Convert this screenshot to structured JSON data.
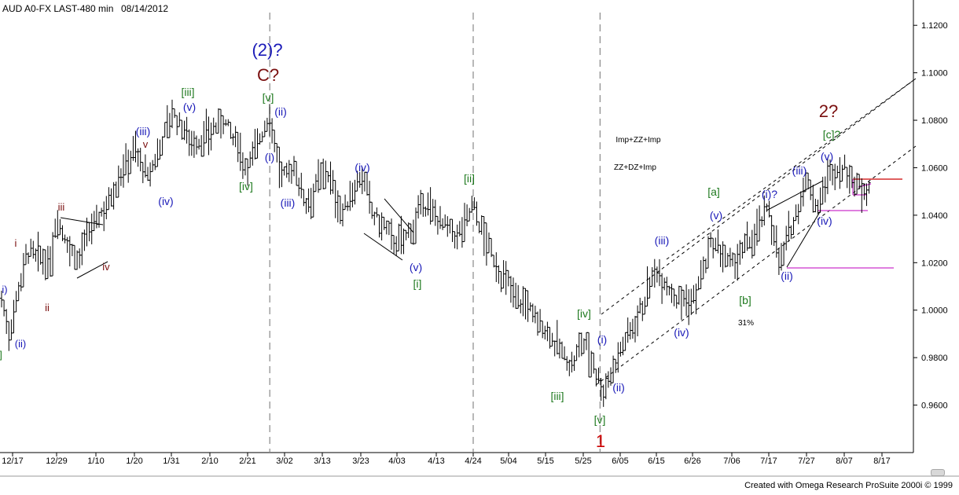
{
  "header": {
    "title": "AUD A0-FX LAST-480 min",
    "date": "08/14/2012"
  },
  "footer": {
    "credit": "Created with Omega Research ProSuite 2000i © 1999"
  },
  "colors": {
    "blue": "#1a1ab8",
    "darkred": "#7a0f0f",
    "green": "#1f7a1f",
    "magenta": "#cc33cc",
    "red": "#cc0000",
    "bars": "#000000"
  },
  "chart_data": {
    "type": "ohlc_bar",
    "symbol": "AUD A0-FX",
    "interval": "LAST-480 min",
    "date": "08/14/2012",
    "y_axis": {
      "side": "right",
      "range": [
        0.94,
        1.13
      ],
      "ticks": [
        "1.1200",
        "1.1000",
        "1.0800",
        "1.0600",
        "1.0400",
        "1.0200",
        "1.0000",
        "0.9800",
        "0.9600"
      ]
    },
    "x_axis": {
      "ticks": [
        "12/17",
        "12/29",
        "1/10",
        "1/20",
        "1/31",
        "2/10",
        "2/21",
        "3/02",
        "3/13",
        "3/23",
        "4/03",
        "4/13",
        "4/24",
        "5/04",
        "5/15",
        "5/25",
        "6/05",
        "6/15",
        "6/26",
        "7/06",
        "7/17",
        "7/27",
        "8/07",
        "8/17"
      ]
    },
    "price_path": [
      [
        "12/14",
        1.005
      ],
      [
        "12/16",
        0.99
      ],
      [
        "12/19",
        1.012
      ],
      [
        "12/21",
        1.025
      ],
      [
        "12/27",
        1.018
      ],
      [
        "12/29",
        1.04
      ],
      [
        "1/04",
        1.02
      ],
      [
        "1/09",
        1.035
      ],
      [
        "1/13",
        1.045
      ],
      [
        "1/17",
        1.06
      ],
      [
        "1/20",
        1.068
      ],
      [
        "1/24",
        1.055
      ],
      [
        "1/31",
        1.083
      ],
      [
        "2/06",
        1.07
      ],
      [
        "2/10",
        1.075
      ],
      [
        "2/14",
        1.08
      ],
      [
        "2/21",
        1.06
      ],
      [
        "2/27",
        1.083
      ],
      [
        "3/01",
        1.055
      ],
      [
        "3/05",
        1.06
      ],
      [
        "3/08",
        1.045
      ],
      [
        "3/14",
        1.06
      ],
      [
        "3/18",
        1.04
      ],
      [
        "3/23",
        1.057
      ],
      [
        "3/27",
        1.04
      ],
      [
        "4/03",
        1.028
      ],
      [
        "4/06",
        1.032
      ],
      [
        "4/10",
        1.045
      ],
      [
        "4/19",
        1.03
      ],
      [
        "4/24",
        1.045
      ],
      [
        "4/27",
        1.03
      ],
      [
        "5/03",
        1.012
      ],
      [
        "5/10",
        1.0
      ],
      [
        "5/16",
        0.99
      ],
      [
        "5/22",
        0.976
      ],
      [
        "5/25",
        0.988
      ],
      [
        "5/31",
        0.966
      ],
      [
        "6/05",
        0.983
      ],
      [
        "6/10",
        0.998
      ],
      [
        "6/15",
        1.018
      ],
      [
        "6/21",
        1.005
      ],
      [
        "6/26",
        1.003
      ],
      [
        "7/01",
        1.028
      ],
      [
        "7/06",
        1.018
      ],
      [
        "7/11",
        1.028
      ],
      [
        "7/17",
        1.043
      ],
      [
        "7/20",
        1.02
      ],
      [
        "7/23",
        1.035
      ],
      [
        "7/27",
        1.055
      ],
      [
        "7/30",
        1.043
      ],
      [
        "8/03",
        1.058
      ],
      [
        "8/07",
        1.06
      ],
      [
        "8/10",
        1.052
      ],
      [
        "8/14",
        1.052
      ]
    ],
    "vertical_separators": [
      "2/27",
      "4/24",
      "5/30"
    ],
    "annotations": [
      {
        "text": "i)",
        "color": "blue"
      },
      {
        "text": "(ii)",
        "color": "blue"
      },
      {
        "text": "]",
        "color": "green"
      },
      {
        "text": "i",
        "color": "darkred"
      },
      {
        "text": "ii",
        "color": "darkred"
      },
      {
        "text": "iii",
        "color": "darkred"
      },
      {
        "text": "iv",
        "color": "darkred"
      },
      {
        "text": "v",
        "color": "darkred"
      },
      {
        "text": "(iii)",
        "color": "blue"
      },
      {
        "text": "(iv)",
        "color": "blue"
      },
      {
        "text": "[iii]",
        "color": "green"
      },
      {
        "text": "(v)",
        "color": "blue"
      },
      {
        "text": "[iv]",
        "color": "green"
      },
      {
        "text": "(2)?",
        "color": "blue"
      },
      {
        "text": "C?",
        "color": "darkred"
      },
      {
        "text": "[v]",
        "color": "green"
      },
      {
        "text": "(ii)",
        "color": "blue"
      },
      {
        "text": "(i)",
        "color": "blue"
      },
      {
        "text": "(iii)",
        "color": "blue"
      },
      {
        "text": "(iv)",
        "color": "blue"
      },
      {
        "text": "(v)",
        "color": "blue"
      },
      {
        "text": "[i]",
        "color": "green"
      },
      {
        "text": "[ii]",
        "color": "green"
      },
      {
        "text": "[iii]",
        "color": "green"
      },
      {
        "text": "[iv]",
        "color": "green"
      },
      {
        "text": "(i)",
        "color": "blue"
      },
      {
        "text": "(ii)",
        "color": "blue"
      },
      {
        "text": "[v]",
        "color": "green"
      },
      {
        "text": "1",
        "color": "red"
      },
      {
        "text": "Imp+ZZ+Imp",
        "color": "black"
      },
      {
        "text": "ZZ+DZ+Imp",
        "color": "black"
      },
      {
        "text": "(iii)",
        "color": "blue"
      },
      {
        "text": "(iv)",
        "color": "blue"
      },
      {
        "text": "[a]",
        "color": "green"
      },
      {
        "text": "(v)",
        "color": "blue"
      },
      {
        "text": "[b]",
        "color": "green"
      },
      {
        "text": "31%",
        "color": "black"
      },
      {
        "text": "(i)?",
        "color": "blue"
      },
      {
        "text": "(ii)",
        "color": "blue"
      },
      {
        "text": "(iii)",
        "color": "blue"
      },
      {
        "text": "(v)",
        "color": "blue"
      },
      {
        "text": "(iv)",
        "color": "blue"
      },
      {
        "text": "[c]?",
        "color": "green"
      },
      {
        "text": "2?",
        "color": "darkred"
      }
    ]
  }
}
